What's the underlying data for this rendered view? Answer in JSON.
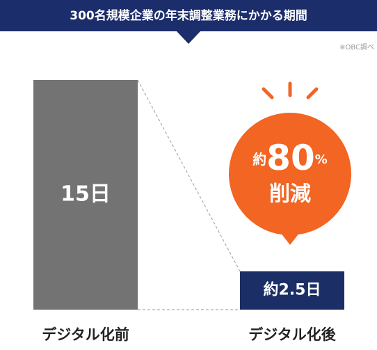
{
  "header": {
    "title": "300名規模企業の年末調整業務にかかる期間",
    "source": "※OBC調べ"
  },
  "chart_data": {
    "type": "bar",
    "categories": [
      "デジタル化前",
      "デジタル化後"
    ],
    "values": [
      15,
      2.5
    ],
    "value_labels": [
      "15日",
      "約2.5日"
    ],
    "colors": [
      "#737373",
      "#1b2f66"
    ],
    "ylim": [
      0,
      15
    ],
    "annotation": {
      "parts": [
        "約",
        "80",
        "%"
      ],
      "line2": "削減",
      "color": "#f26522"
    }
  }
}
